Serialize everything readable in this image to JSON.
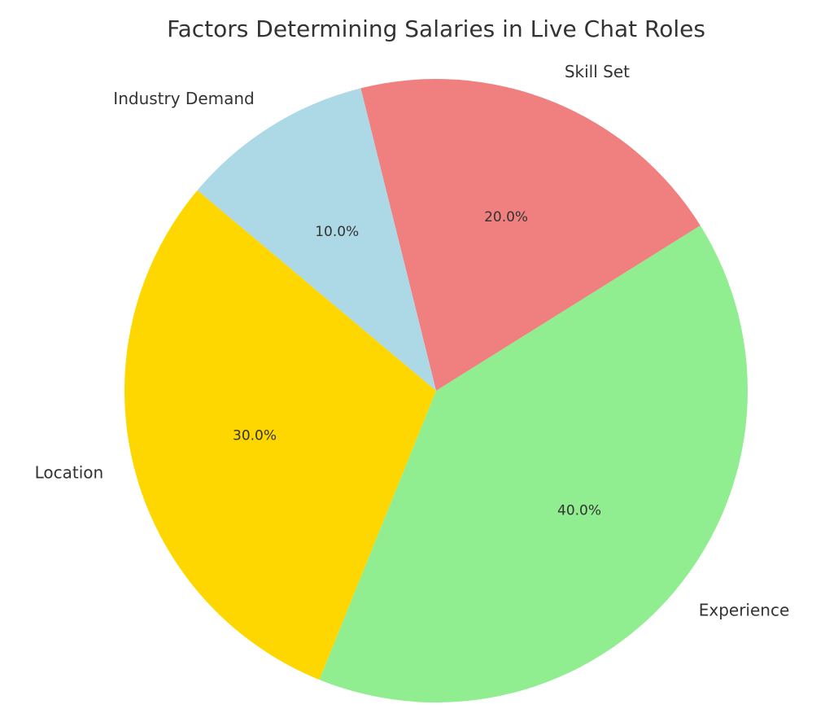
{
  "chart_data": {
    "type": "pie",
    "title": "Factors Determining Salaries in Live Chat Roles",
    "categories": [
      "Location",
      "Experience",
      "Skill Set",
      "Industry Demand"
    ],
    "values": [
      30,
      40,
      20,
      10
    ],
    "value_labels": [
      "30.0%",
      "40.0%",
      "20.0%",
      "10.0%"
    ],
    "colors": [
      "#ffd700",
      "#90ee90",
      "#f08080",
      "#add8e6"
    ],
    "start_angle": 140
  }
}
